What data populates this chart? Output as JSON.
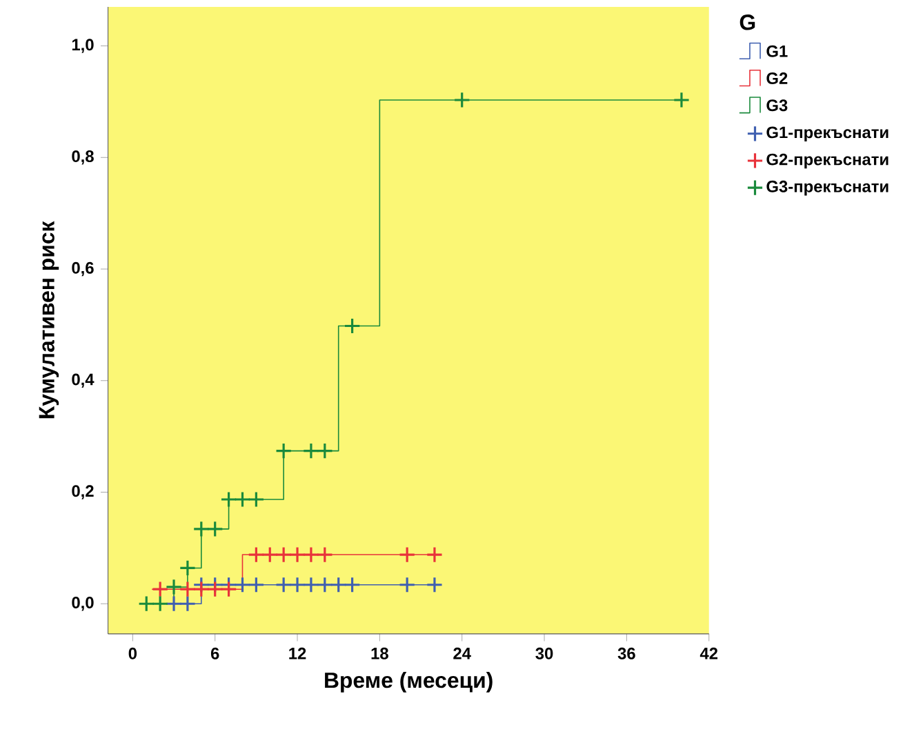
{
  "chart_data": {
    "type": "step",
    "xlabel": "Време (месеци)",
    "ylabel": "Кумулативен риск",
    "legend_title": "G",
    "legend": "right",
    "xlim": [
      -1.8,
      42
    ],
    "ylim": [
      -0.054,
      1.07
    ],
    "xticks": [
      0,
      6,
      12,
      18,
      24,
      30,
      36,
      42
    ],
    "yticks": [
      {
        "value": 0,
        "label": "0,0"
      },
      {
        "value": 0.2,
        "label": "0,2"
      },
      {
        "value": 0.4,
        "label": "0,4"
      },
      {
        "value": 0.6,
        "label": "0,6"
      },
      {
        "value": 0.8,
        "label": "0,8"
      },
      {
        "value": 1.0,
        "label": "1,0"
      }
    ],
    "series": [
      {
        "name": "G1",
        "color": "#3f5fb0",
        "x": [
          3,
          5,
          22
        ],
        "values": [
          0,
          0.034,
          0.034
        ]
      },
      {
        "name": "G2",
        "color": "#e8323a",
        "x": [
          1.4,
          8,
          22
        ],
        "values": [
          0.026,
          0.088,
          0.088
        ]
      },
      {
        "name": "G3",
        "color": "#1a8a3c",
        "x": [
          1,
          3,
          4,
          5,
          7,
          11,
          15,
          18,
          40
        ],
        "values": [
          0,
          0.03,
          0.064,
          0.134,
          0.187,
          0.274,
          0.498,
          0.903,
          0.903
        ]
      },
      {
        "name": "G1-прекъснати",
        "type": "scatter",
        "marker": "cross",
        "color": "#3f5fb0",
        "x": [
          3,
          4,
          5,
          6,
          7,
          8,
          9,
          11,
          12,
          13,
          14,
          15,
          16,
          20,
          22
        ],
        "values": [
          0,
          0,
          0.034,
          0.034,
          0.034,
          0.034,
          0.034,
          0.034,
          0.034,
          0.034,
          0.034,
          0.034,
          0.034,
          0.034,
          0.034
        ]
      },
      {
        "name": "G2-прекъснати",
        "type": "scatter",
        "marker": "cross",
        "color": "#e8323a",
        "x": [
          2,
          4,
          5,
          6,
          7,
          9,
          10,
          11,
          12,
          13,
          14,
          20,
          22
        ],
        "values": [
          0.026,
          0.026,
          0.026,
          0.026,
          0.026,
          0.088,
          0.088,
          0.088,
          0.088,
          0.088,
          0.088,
          0.088,
          0.088
        ]
      },
      {
        "name": "G3-прекъснати",
        "type": "scatter",
        "marker": "cross",
        "color": "#1a8a3c",
        "x": [
          1,
          2,
          3,
          4,
          5,
          6,
          7,
          8,
          9,
          11,
          13,
          14,
          16,
          24,
          40
        ],
        "values": [
          0,
          0,
          0.03,
          0.064,
          0.134,
          0.134,
          0.187,
          0.187,
          0.187,
          0.274,
          0.274,
          0.274,
          0.498,
          0.903,
          0.903
        ]
      }
    ]
  }
}
